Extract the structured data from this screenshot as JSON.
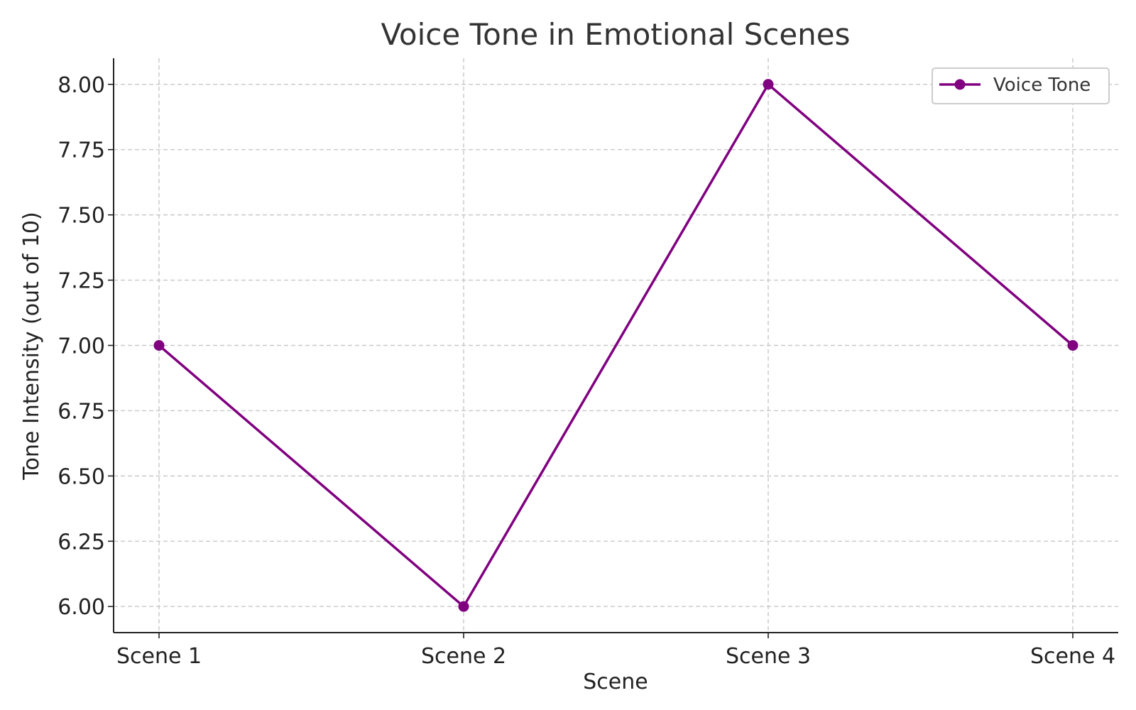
{
  "chart_data": {
    "type": "line",
    "title": "Voice Tone in Emotional Scenes",
    "xlabel": "Scene",
    "ylabel": "Tone Intensity (out of 10)",
    "categories": [
      "Scene 1",
      "Scene 2",
      "Scene 3",
      "Scene 4"
    ],
    "series": [
      {
        "name": "Voice Tone",
        "values": [
          7,
          6,
          8,
          7
        ],
        "color": "#800080",
        "marker": "circle"
      }
    ],
    "ylim": [
      5.9,
      8.1
    ],
    "yticks": [
      6.0,
      6.25,
      6.5,
      6.75,
      7.0,
      7.25,
      7.5,
      7.75,
      8.0
    ],
    "ytick_labels": [
      "6.00",
      "6.25",
      "6.50",
      "6.75",
      "7.00",
      "7.25",
      "7.50",
      "7.75",
      "8.00"
    ],
    "grid": true,
    "legend_position": "top-right"
  }
}
